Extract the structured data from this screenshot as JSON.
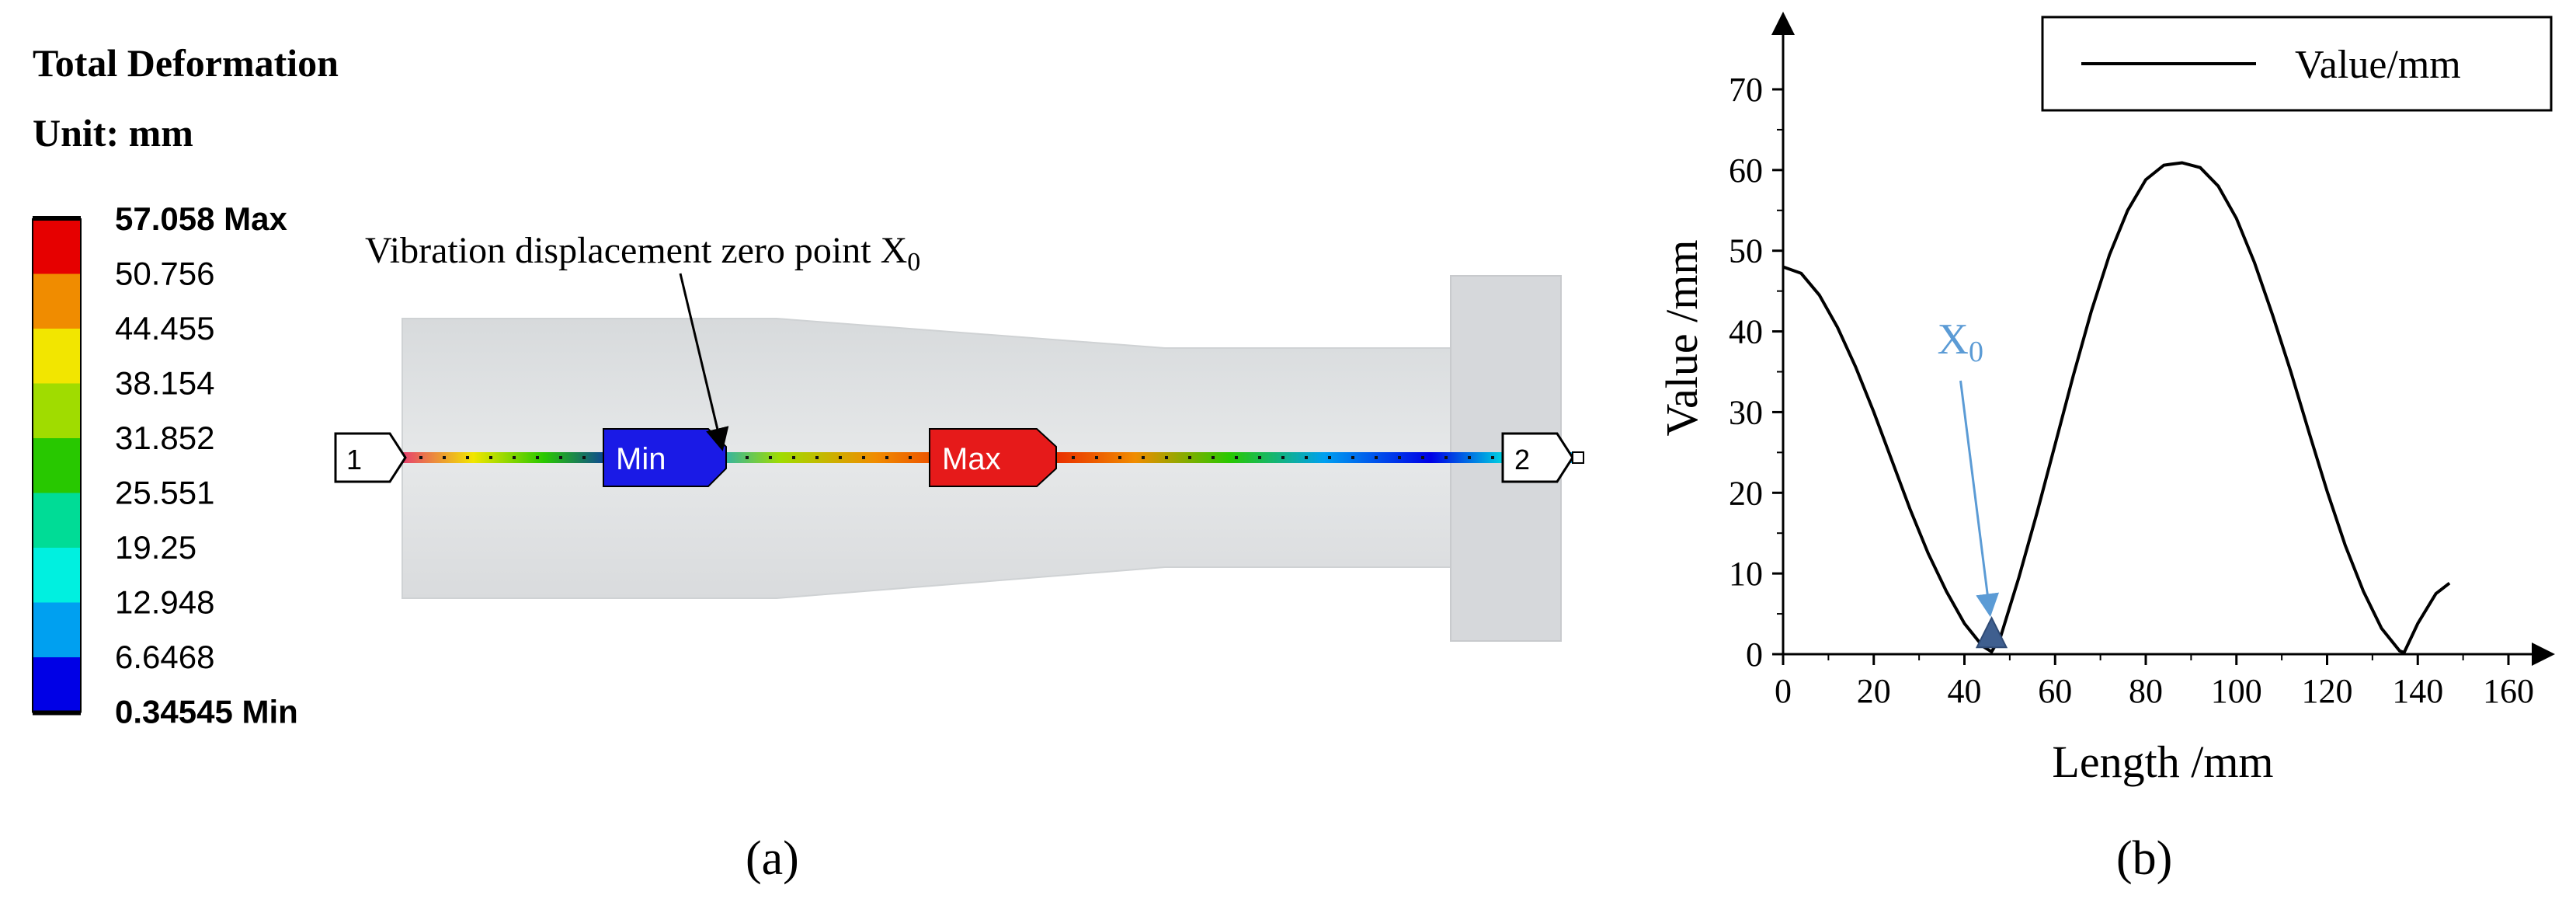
{
  "panel_a": {
    "title": "Total Deformation",
    "unit": "Unit: mm",
    "legend": [
      {
        "label": "57.058 Max",
        "color": "#e60000",
        "bold": true
      },
      {
        "label": "50.756",
        "color": "#f08c00",
        "bold": false
      },
      {
        "label": "44.455",
        "color": "#f2e600",
        "bold": false
      },
      {
        "label": "38.154",
        "color": "#a0dc00",
        "bold": false
      },
      {
        "label": "31.852",
        "color": "#28c800",
        "bold": false
      },
      {
        "label": "25.551",
        "color": "#00dc96",
        "bold": false
      },
      {
        "label": "19.25",
        "color": "#00f0e0",
        "bold": false
      },
      {
        "label": "12.948",
        "color": "#00a0f0",
        "bold": false
      },
      {
        "label": "6.6468",
        "color": "#0000e6",
        "bold": false
      },
      {
        "label": "0.34545 Min",
        "color": "#0000e6",
        "bold": true
      }
    ],
    "annotation": "Vibration displacement zero point X",
    "annotation_sub": "0",
    "probe_start": "1",
    "probe_end": "2",
    "min_tag": "Min",
    "max_tag": "Max",
    "min_tag_color": "#1a1ae6",
    "max_tag_color": "#e61a1a",
    "caption": "(a)"
  },
  "panel_b": {
    "caption": "(b)",
    "marker_label": "X",
    "marker_sub": "0",
    "marker_color": "#5b9bd5",
    "marker_fill": "#3f5f8f",
    "chart_data": {
      "type": "line",
      "xlabel": "Length /mm",
      "ylabel": "Value /mm",
      "xlim": [
        0,
        170
      ],
      "ylim": [
        0,
        75
      ],
      "xticks": [
        0,
        20,
        40,
        60,
        80,
        100,
        120,
        140,
        160
      ],
      "yticks": [
        0,
        10,
        20,
        30,
        40,
        50,
        60,
        70
      ],
      "legend_position": "top-right",
      "series": [
        {
          "name": "Value/mm",
          "color": "#000000",
          "x": [
            0,
            4,
            8,
            12,
            16,
            20,
            24,
            28,
            32,
            36,
            40,
            44,
            46,
            48,
            52,
            56,
            60,
            64,
            68,
            72,
            76,
            80,
            84,
            88,
            92,
            96,
            100,
            104,
            108,
            112,
            116,
            120,
            124,
            128,
            132,
            136,
            137,
            140,
            144,
            147
          ],
          "y": [
            48,
            47.2,
            44.5,
            40.5,
            35.6,
            30.0,
            24.0,
            18.0,
            12.5,
            7.8,
            3.8,
            1.0,
            0.3,
            2.2,
            9.5,
            17.5,
            26.0,
            34.5,
            42.5,
            49.5,
            55.0,
            58.8,
            60.6,
            60.9,
            60.3,
            58.0,
            54.0,
            48.5,
            42.0,
            35.0,
            27.5,
            20.2,
            13.5,
            7.8,
            3.2,
            0.4,
            0.2,
            3.8,
            7.5,
            8.8
          ]
        }
      ],
      "marker": {
        "x": 46,
        "y": 2
      }
    }
  }
}
